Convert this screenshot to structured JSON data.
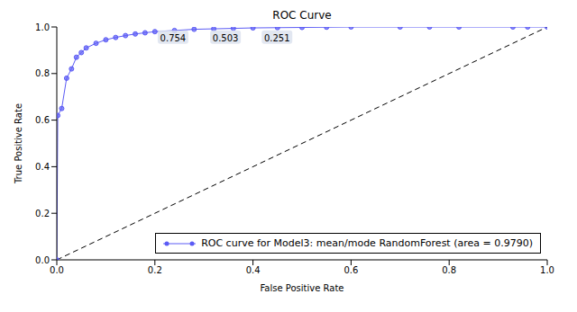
{
  "chart_data": {
    "type": "line",
    "title": "ROC Curve",
    "x_label": "False Positive Rate",
    "y_label": "True Positive Rate",
    "xlim": [
      0,
      1
    ],
    "ylim": [
      0,
      1
    ],
    "xticks": [
      {
        "value": 0,
        "label": "0.0"
      },
      0.2,
      0.4,
      0.6,
      0.8,
      {
        "value": 1,
        "label": "1.0"
      }
    ],
    "yticks": [
      {
        "value": 0,
        "label": "0.0"
      },
      0.2,
      0.4,
      0.6,
      0.8,
      {
        "value": 1,
        "label": "1.0"
      }
    ],
    "grid": false,
    "legend": "lower right",
    "series": [
      {
        "name": "ROC curve for Model3: mean/mode RandomForest (area = 0.9790)",
        "color": "#5b5bf5",
        "marker": "o",
        "line_style": "solid",
        "x": [
          0,
          0.002,
          0.01,
          0.02,
          0.03,
          0.04,
          0.05,
          0.06,
          0.08,
          0.1,
          0.12,
          0.14,
          0.16,
          0.18,
          0.2,
          0.24,
          0.28,
          0.32,
          0.36,
          0.4,
          0.45,
          0.5,
          0.55,
          0.6,
          0.7,
          0.76,
          0.82,
          0.93,
          0.96,
          1.0
        ],
        "values": [
          0,
          0.62,
          0.65,
          0.78,
          0.82,
          0.87,
          0.89,
          0.91,
          0.93,
          0.945,
          0.955,
          0.963,
          0.97,
          0.975,
          0.98,
          0.985,
          0.99,
          0.992,
          0.994,
          0.996,
          0.997,
          0.998,
          0.999,
          1.0,
          1.0,
          1.0,
          1.0,
          1.0,
          1.0,
          1.0
        ]
      },
      {
        "color": "#000000",
        "marker": "none",
        "line_style": "dashed",
        "x": [
          0,
          1
        ],
        "values": [
          0,
          1
        ]
      }
    ],
    "annotations": [
      {
        "text": "0.754",
        "x": 0.237,
        "y": 0.955
      },
      {
        "text": "0.503",
        "x": 0.344,
        "y": 0.955
      },
      {
        "text": "0.251",
        "x": 0.449,
        "y": 0.955
      }
    ]
  }
}
